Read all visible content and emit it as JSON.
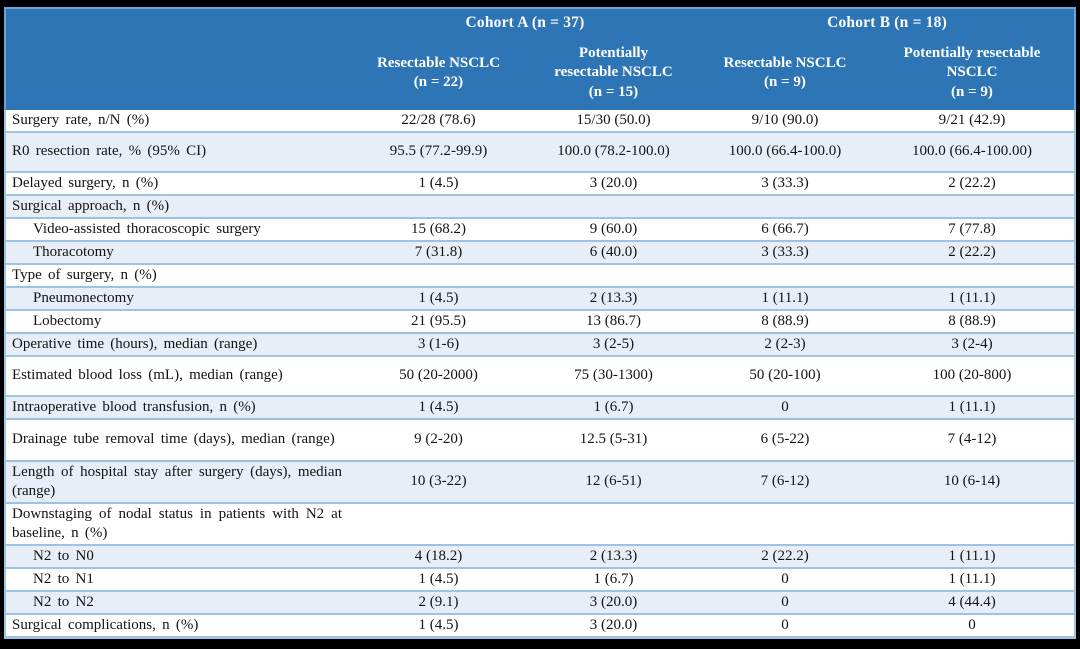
{
  "colors": {
    "header_bg": "#2E75B6",
    "header_text": "#FFFFFF",
    "row_alt_bg": "#E8EEF7",
    "row_border": "#9CC3E6",
    "frame": "#000000"
  },
  "table": {
    "cohorts": [
      {
        "label": "Cohort A (n = 37)"
      },
      {
        "label": "Cohort B (n = 18)"
      }
    ],
    "columns": [
      {
        "name": "Resectable NSCLC",
        "n": "(n = 22)"
      },
      {
        "name": "Potentially resectable NSCLC",
        "n": "(n = 15)"
      },
      {
        "name": "Resectable NSCLC",
        "n": "(n = 9)"
      },
      {
        "name": "Potentially resectable NSCLC",
        "n": "(n = 9)"
      }
    ],
    "rows": [
      {
        "label": "Surgery rate, n/N (%)",
        "values": [
          "22/28 (78.6)",
          "15/30 (50.0)",
          "9/10 (90.0)",
          "9/21 (42.9)"
        ]
      },
      {
        "label": "R0 resection rate, % (95% CI)",
        "values": [
          "95.5 (77.2-99.9)",
          "100.0 (78.2-100.0)",
          "100.0 (66.4-100.0)",
          "100.0 (66.4-100.00)"
        ]
      },
      {
        "label": "Delayed surgery, n (%)",
        "values": [
          "1 (4.5)",
          "3 (20.0)",
          "3 (33.3)",
          "2 (22.2)"
        ]
      },
      {
        "label": "Surgical approach, n (%)",
        "values": [
          "",
          "",
          "",
          ""
        ]
      },
      {
        "label": "Video-assisted thoracoscopic surgery",
        "values": [
          "15 (68.2)",
          "9 (60.0)",
          "6 (66.7)",
          "7 (77.8)"
        ]
      },
      {
        "label": "Thoracotomy",
        "values": [
          "7 (31.8)",
          "6 (40.0)",
          "3 (33.3)",
          "2 (22.2)"
        ]
      },
      {
        "label": "Type of surgery, n (%)",
        "values": [
          "",
          "",
          "",
          ""
        ]
      },
      {
        "label": "Pneumonectomy",
        "values": [
          "1 (4.5)",
          "2 (13.3)",
          "1 (11.1)",
          "1 (11.1)"
        ]
      },
      {
        "label": "Lobectomy",
        "values": [
          "21 (95.5)",
          "13 (86.7)",
          "8 (88.9)",
          "8 (88.9)"
        ]
      },
      {
        "label": "Operative time (hours), median (range)",
        "values": [
          "3 (1-6)",
          "3 (2-5)",
          "2 (2-3)",
          "3 (2-4)"
        ]
      },
      {
        "label": "Estimated blood loss (mL), median (range)",
        "values": [
          "50 (20-2000)",
          "75 (30-1300)",
          "50 (20-100)",
          "100 (20-800)"
        ]
      },
      {
        "label": "Intraoperative blood transfusion, n (%)",
        "values": [
          "1 (4.5)",
          "1 (6.7)",
          "0",
          "1 (11.1)"
        ]
      },
      {
        "label": "Drainage tube removal time (days), median (range)",
        "values": [
          "9 (2-20)",
          "12.5 (5-31)",
          "6 (5-22)",
          "7 (4-12)"
        ]
      },
      {
        "label": "Length of hospital stay after surgery (days), median (range)",
        "values": [
          "10 (3-22)",
          "12 (6-51)",
          "7 (6-12)",
          "10 (6-14)"
        ]
      },
      {
        "label": "Downstaging of nodal status in patients with N2 at baseline, n (%)",
        "values": [
          "",
          "",
          "",
          ""
        ]
      },
      {
        "label": "N2 to N0",
        "values": [
          "4 (18.2)",
          "2 (13.3)",
          "2 (22.2)",
          "1 (11.1)"
        ]
      },
      {
        "label": "N2 to N1",
        "values": [
          "1 (4.5)",
          "1 (6.7)",
          "0",
          "1 (11.1)"
        ]
      },
      {
        "label": "N2 to N2",
        "values": [
          "2 (9.1)",
          "3 (20.0)",
          "0",
          "4 (44.4)"
        ]
      },
      {
        "label": "Surgical complications, n (%)",
        "values": [
          "1 (4.5)",
          "3 (20.0)",
          "0",
          "0"
        ]
      }
    ]
  }
}
